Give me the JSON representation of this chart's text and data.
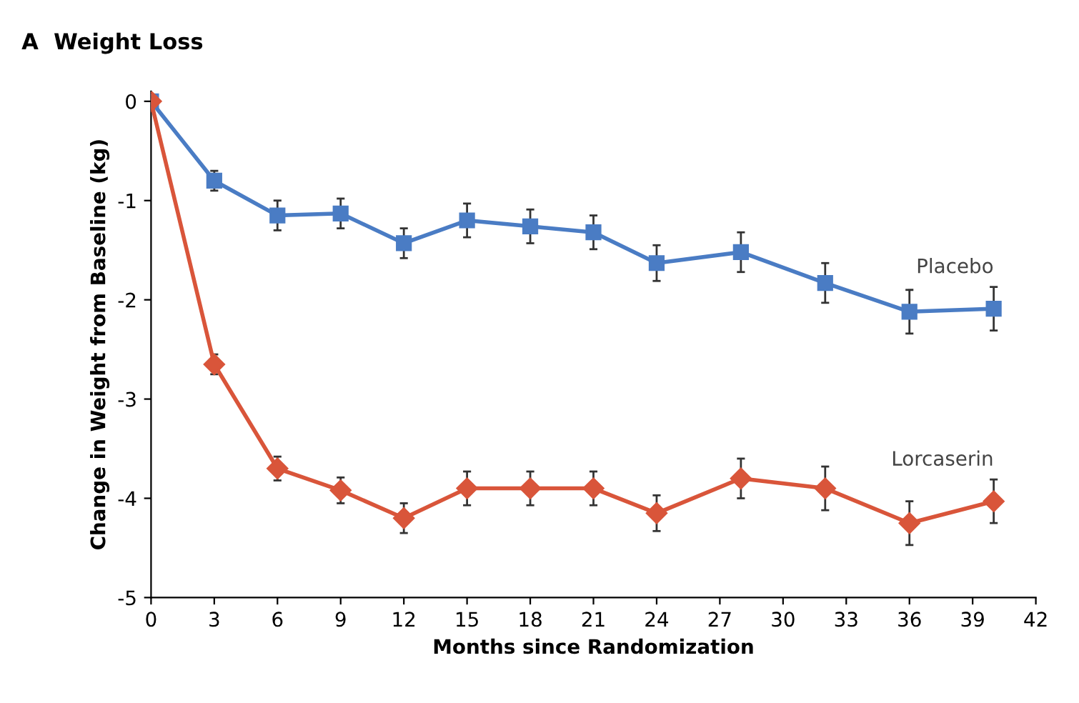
{
  "chart_data": {
    "type": "line",
    "title": "A  Weight Loss",
    "xlabel": "Months since Randomization",
    "ylabel": "Change in Weight from Baseline (kg)",
    "x": [
      0,
      3,
      6,
      9,
      12,
      15,
      18,
      21,
      24,
      28,
      32,
      36,
      40
    ],
    "series": [
      {
        "name": "Placebo",
        "color": "#4a7cc4",
        "marker": "square",
        "values": [
          0,
          -0.8,
          -1.15,
          -1.13,
          -1.43,
          -1.2,
          -1.26,
          -1.32,
          -1.63,
          -1.52,
          -1.83,
          -2.12,
          -2.09
        ],
        "errors": [
          null,
          0.1,
          0.15,
          0.15,
          0.15,
          0.17,
          0.17,
          0.17,
          0.18,
          0.2,
          0.2,
          0.22,
          0.22
        ]
      },
      {
        "name": "Lorcaserin",
        "color": "#d9553a",
        "marker": "diamond",
        "values": [
          0,
          -2.65,
          -3.7,
          -3.92,
          -4.2,
          -3.9,
          -3.9,
          -3.9,
          -4.15,
          -3.8,
          -3.9,
          -4.25,
          -4.03
        ],
        "errors": [
          null,
          0.1,
          0.12,
          0.13,
          0.15,
          0.17,
          0.17,
          0.17,
          0.18,
          0.2,
          0.22,
          0.22,
          0.22
        ]
      }
    ],
    "xlim": [
      0,
      42
    ],
    "xticks": [
      0,
      3,
      6,
      9,
      12,
      15,
      18,
      21,
      24,
      27,
      30,
      33,
      36,
      39,
      42
    ],
    "ylim": [
      -5,
      0.1
    ],
    "yticks": [
      0,
      -1,
      -2,
      -3,
      -4,
      -5
    ],
    "grid": false,
    "legend": false,
    "line_style": "solid"
  }
}
